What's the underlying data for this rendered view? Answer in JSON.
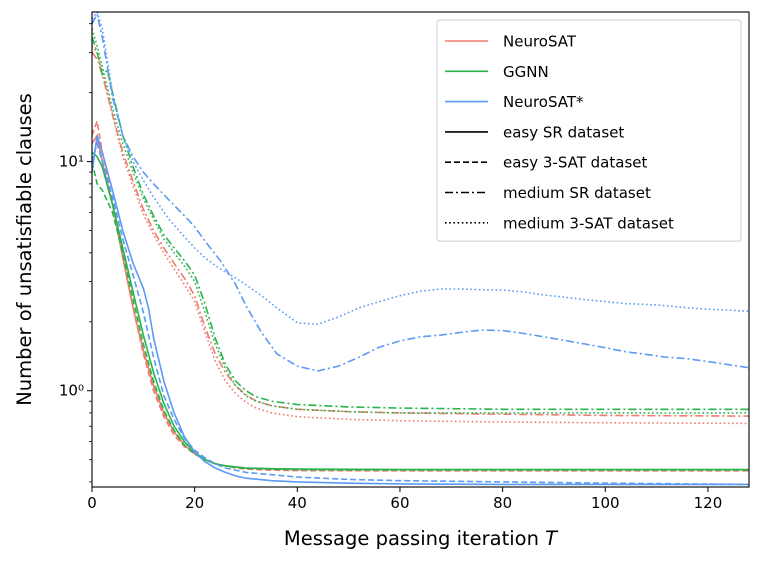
{
  "chart_data": {
    "type": "line",
    "title": "",
    "xlabel": "Message passing iteration",
    "xlabel_var": "T",
    "ylabel": "Number of unsatisfiable clauses",
    "xlim": [
      0,
      128
    ],
    "ylim": [
      0.38,
      45
    ],
    "yscale": "log",
    "grid": false,
    "legend_position": "top-right",
    "x_ticks": [
      0,
      20,
      40,
      60,
      80,
      100,
      120
    ],
    "x_tick_labels": [
      "0",
      "20",
      "40",
      "60",
      "80",
      "100",
      "120"
    ],
    "y_ticks": [
      1,
      10
    ],
    "y_tick_labels": [
      "10⁰",
      "10¹"
    ],
    "models": [
      {
        "name": "NeuroSAT",
        "color": "#f07b6c"
      },
      {
        "name": "GGNN",
        "color": "#27b54b"
      },
      {
        "name": "NeuroSAT*",
        "color": "#5b9af5"
      }
    ],
    "datasets": [
      {
        "name": "easy SR dataset",
        "dash": "solid"
      },
      {
        "name": "easy 3-SAT dataset",
        "dash": "dashed"
      },
      {
        "name": "medium SR dataset",
        "dash": "dashdot"
      },
      {
        "name": "medium 3-SAT dataset",
        "dash": "dotted"
      }
    ],
    "series": [
      {
        "name": "NeuroSAT - easy SR dataset",
        "model": 0,
        "dataset": 0,
        "x": [
          0,
          1,
          2,
          4,
          6,
          8,
          10,
          12,
          14,
          16,
          18,
          20,
          22,
          24,
          26,
          28,
          30,
          35,
          40,
          60,
          80,
          100,
          128
        ],
        "y": [
          12,
          13,
          10,
          6.5,
          3.8,
          2.3,
          1.5,
          1.05,
          0.8,
          0.66,
          0.58,
          0.53,
          0.5,
          0.48,
          0.47,
          0.465,
          0.46,
          0.455,
          0.453,
          0.452,
          0.452,
          0.452,
          0.452
        ]
      },
      {
        "name": "NeuroSAT - easy 3-SAT dataset",
        "model": 0,
        "dataset": 1,
        "x": [
          0,
          1,
          2,
          4,
          6,
          8,
          10,
          12,
          14,
          16,
          18,
          20,
          22,
          24,
          26,
          28,
          30,
          35,
          40,
          60,
          80,
          100,
          128
        ],
        "y": [
          13,
          15,
          11,
          6.8,
          3.9,
          2.3,
          1.45,
          1.0,
          0.77,
          0.64,
          0.57,
          0.53,
          0.5,
          0.48,
          0.47,
          0.46,
          0.455,
          0.45,
          0.448,
          0.447,
          0.447,
          0.447,
          0.447
        ]
      },
      {
        "name": "NeuroSAT - medium SR dataset",
        "model": 0,
        "dataset": 2,
        "x": [
          0,
          1,
          2,
          4,
          6,
          8,
          10,
          12,
          14,
          16,
          18,
          20,
          22,
          24,
          26,
          28,
          30,
          32,
          35,
          40,
          50,
          60,
          80,
          100,
          128
        ],
        "y": [
          30,
          28,
          24,
          16,
          11,
          8.2,
          6.2,
          5.0,
          4.2,
          3.6,
          3.1,
          2.6,
          1.9,
          1.45,
          1.2,
          1.05,
          0.96,
          0.9,
          0.86,
          0.83,
          0.81,
          0.8,
          0.79,
          0.78,
          0.775
        ]
      },
      {
        "name": "NeuroSAT - medium 3-SAT dataset",
        "model": 0,
        "dataset": 3,
        "x": [
          0,
          1,
          2,
          4,
          6,
          8,
          10,
          12,
          14,
          16,
          18,
          20,
          22,
          24,
          26,
          28,
          30,
          32,
          35,
          40,
          50,
          60,
          80,
          100,
          128
        ],
        "y": [
          32,
          30,
          25,
          16,
          10.5,
          7.8,
          5.9,
          4.8,
          4.0,
          3.4,
          2.9,
          2.45,
          1.8,
          1.35,
          1.1,
          0.97,
          0.89,
          0.84,
          0.8,
          0.77,
          0.75,
          0.74,
          0.73,
          0.725,
          0.72
        ]
      },
      {
        "name": "GGNN - easy SR dataset",
        "model": 1,
        "dataset": 0,
        "x": [
          0,
          1,
          2,
          4,
          6,
          8,
          10,
          12,
          14,
          16,
          18,
          20,
          22,
          24,
          26,
          28,
          30,
          35,
          40,
          60,
          80,
          100,
          128
        ],
        "y": [
          11,
          10.5,
          9.5,
          6.5,
          4.2,
          2.7,
          1.75,
          1.2,
          0.88,
          0.7,
          0.6,
          0.54,
          0.5,
          0.48,
          0.47,
          0.465,
          0.46,
          0.457,
          0.455,
          0.453,
          0.453,
          0.453,
          0.453
        ]
      },
      {
        "name": "GGNN - easy 3-SAT dataset",
        "model": 1,
        "dataset": 1,
        "x": [
          0,
          1,
          2,
          4,
          6,
          8,
          10,
          12,
          14,
          16,
          18,
          20,
          22,
          24,
          26,
          28,
          30,
          35,
          40,
          60,
          80,
          100,
          128
        ],
        "y": [
          10,
          8,
          7.5,
          6,
          4.0,
          2.5,
          1.6,
          1.1,
          0.82,
          0.67,
          0.58,
          0.53,
          0.5,
          0.48,
          0.47,
          0.462,
          0.458,
          0.455,
          0.452,
          0.451,
          0.451,
          0.451,
          0.451
        ]
      },
      {
        "name": "GGNN - medium SR dataset",
        "model": 1,
        "dataset": 2,
        "x": [
          0,
          1,
          2,
          3,
          4,
          6,
          8,
          10,
          12,
          14,
          16,
          18,
          20,
          22,
          24,
          26,
          28,
          30,
          32,
          35,
          40,
          50,
          60,
          80,
          100,
          128
        ],
        "y": [
          35,
          30,
          24,
          25,
          20,
          13,
          9.5,
          7.2,
          5.8,
          4.8,
          4.2,
          3.7,
          3.2,
          2.4,
          1.7,
          1.3,
          1.1,
          1.0,
          0.94,
          0.9,
          0.87,
          0.85,
          0.84,
          0.83,
          0.83,
          0.83
        ]
      },
      {
        "name": "GGNN - medium 3-SAT dataset",
        "model": 1,
        "dataset": 3,
        "x": [
          0,
          1,
          2,
          4,
          6,
          8,
          10,
          12,
          14,
          16,
          18,
          20,
          22,
          24,
          26,
          28,
          30,
          32,
          35,
          40,
          50,
          60,
          80,
          100,
          128
        ],
        "y": [
          38,
          32,
          26,
          17,
          12,
          9.0,
          6.9,
          5.6,
          4.6,
          4.0,
          3.5,
          3.0,
          2.2,
          1.6,
          1.25,
          1.05,
          0.95,
          0.9,
          0.86,
          0.83,
          0.81,
          0.8,
          0.8,
          0.8,
          0.8
        ]
      },
      {
        "name": "NeuroSAT* - easy SR dataset",
        "model": 2,
        "dataset": 0,
        "x": [
          0,
          1,
          2,
          4,
          6,
          8,
          10,
          11,
          12,
          14,
          16,
          18,
          20,
          22,
          24,
          26,
          28,
          30,
          35,
          40,
          50,
          60,
          80,
          100,
          128
        ],
        "y": [
          9,
          13,
          11,
          7.5,
          5.0,
          3.6,
          2.8,
          2.3,
          1.7,
          1.1,
          0.8,
          0.63,
          0.54,
          0.49,
          0.46,
          0.44,
          0.425,
          0.415,
          0.405,
          0.4,
          0.395,
          0.392,
          0.39,
          0.39,
          0.39
        ]
      },
      {
        "name": "NeuroSAT* - easy 3-SAT dataset",
        "model": 2,
        "dataset": 1,
        "x": [
          0,
          1,
          2,
          4,
          6,
          8,
          10,
          12,
          14,
          16,
          18,
          20,
          22,
          24,
          26,
          28,
          30,
          35,
          40,
          50,
          60,
          80,
          100,
          128
        ],
        "y": [
          10,
          12,
          10,
          7,
          4.6,
          3.2,
          2.2,
          1.4,
          0.95,
          0.75,
          0.62,
          0.55,
          0.51,
          0.48,
          0.46,
          0.45,
          0.44,
          0.43,
          0.42,
          0.41,
          0.405,
          0.4,
          0.395,
          0.39
        ]
      },
      {
        "name": "NeuroSAT* - medium SR dataset",
        "model": 2,
        "dataset": 2,
        "x": [
          0,
          1,
          2,
          4,
          6,
          8,
          10,
          12,
          15,
          18,
          20,
          22,
          25,
          28,
          30,
          33,
          36,
          40,
          44,
          48,
          52,
          56,
          60,
          64,
          68,
          72,
          76,
          80,
          84,
          88,
          92,
          96,
          100,
          104,
          108,
          112,
          116,
          120,
          124,
          128
        ],
        "y": [
          40,
          44,
          35,
          19,
          13,
          10.5,
          9.0,
          8.0,
          6.8,
          5.8,
          5.2,
          4.5,
          3.7,
          2.9,
          2.35,
          1.8,
          1.45,
          1.28,
          1.22,
          1.28,
          1.4,
          1.55,
          1.65,
          1.72,
          1.75,
          1.8,
          1.84,
          1.83,
          1.78,
          1.72,
          1.66,
          1.6,
          1.54,
          1.48,
          1.44,
          1.4,
          1.38,
          1.34,
          1.3,
          1.26
        ]
      },
      {
        "name": "NeuroSAT* - medium 3-SAT dataset",
        "model": 2,
        "dataset": 3,
        "x": [
          0,
          1,
          2,
          4,
          6,
          8,
          10,
          12,
          15,
          18,
          20,
          22,
          25,
          28,
          30,
          33,
          36,
          40,
          44,
          48,
          52,
          56,
          60,
          64,
          68,
          72,
          76,
          80,
          84,
          88,
          92,
          96,
          100,
          104,
          108,
          112,
          116,
          120,
          124,
          128
        ],
        "y": [
          42,
          45,
          38,
          20,
          13,
          10,
          8.3,
          7.0,
          5.6,
          4.7,
          4.2,
          3.8,
          3.4,
          3.1,
          2.9,
          2.6,
          2.3,
          1.98,
          1.95,
          2.1,
          2.3,
          2.45,
          2.6,
          2.72,
          2.78,
          2.78,
          2.76,
          2.75,
          2.7,
          2.62,
          2.56,
          2.5,
          2.45,
          2.4,
          2.38,
          2.35,
          2.3,
          2.27,
          2.25,
          2.22
        ]
      }
    ]
  }
}
